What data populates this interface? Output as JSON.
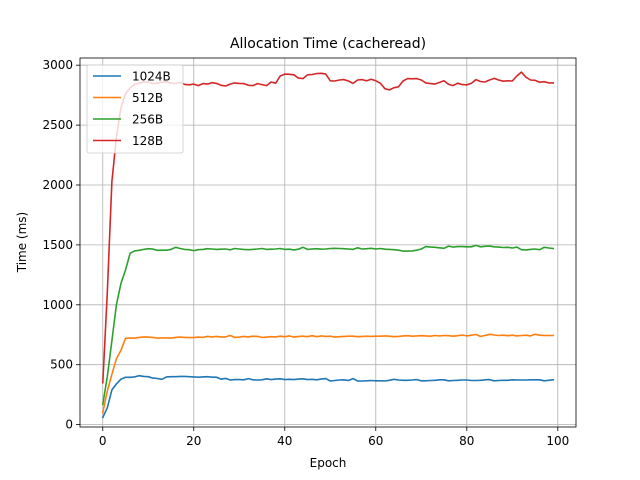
{
  "chart_data": {
    "type": "line",
    "title": "Allocation Time (cacheread)",
    "xlabel": "Epoch",
    "ylabel": "Time (ms)",
    "xlim": [
      -5,
      104
    ],
    "ylim": [
      -20,
      3060
    ],
    "xticks": [
      0,
      20,
      40,
      60,
      80,
      100
    ],
    "yticks": [
      0,
      500,
      1000,
      1500,
      2000,
      2500,
      3000
    ],
    "grid": true,
    "legend_position": "top-left",
    "series": [
      {
        "name": "1024B",
        "color": "#1f77b4",
        "x": [
          0,
          1,
          2,
          3,
          4,
          5,
          6,
          7,
          8,
          9,
          10,
          11,
          12,
          13,
          14,
          15,
          16,
          17,
          18,
          19,
          20,
          21,
          22,
          23,
          24,
          25,
          26,
          27,
          28,
          29,
          30,
          31,
          32,
          33,
          34,
          35,
          36,
          37,
          38,
          39,
          40,
          41,
          42,
          43,
          44,
          45,
          46,
          47,
          48,
          49,
          50,
          51,
          52,
          53,
          54,
          55,
          56,
          57,
          58,
          59,
          60,
          61,
          62,
          63,
          64,
          65,
          66,
          67,
          68,
          69,
          70,
          71,
          72,
          73,
          74,
          75,
          76,
          77,
          78,
          79,
          80,
          81,
          82,
          83,
          84,
          85,
          86,
          87,
          88,
          89,
          90,
          91,
          92,
          93,
          94,
          95,
          96,
          97,
          98,
          99
        ],
        "y": [
          60,
          140,
          290,
          340,
          380,
          395,
          395,
          398,
          408,
          402,
          400,
          388,
          385,
          378,
          398,
          400,
          400,
          402,
          402,
          400,
          398,
          396,
          398,
          400,
          396,
          396,
          380,
          386,
          372,
          376,
          376,
          374,
          384,
          374,
          372,
          374,
          382,
          376,
          380,
          382,
          376,
          378,
          376,
          380,
          382,
          376,
          378,
          374,
          380,
          384,
          364,
          368,
          372,
          374,
          368,
          384,
          364,
          364,
          366,
          368,
          366,
          366,
          364,
          370,
          378,
          372,
          370,
          370,
          372,
          376,
          366,
          366,
          368,
          370,
          374,
          374,
          366,
          368,
          370,
          372,
          372,
          368,
          368,
          370,
          374,
          376,
          366,
          368,
          370,
          370,
          374,
          372,
          372,
          372,
          374,
          374,
          374,
          366,
          370,
          374
        ]
      },
      {
        "name": "512B",
        "color": "#ff7f0e",
        "x": [
          0,
          1,
          2,
          3,
          4,
          5,
          6,
          7,
          8,
          9,
          10,
          11,
          12,
          13,
          14,
          15,
          16,
          17,
          18,
          19,
          20,
          21,
          22,
          23,
          24,
          25,
          26,
          27,
          28,
          29,
          30,
          31,
          32,
          33,
          34,
          35,
          36,
          37,
          38,
          39,
          40,
          41,
          42,
          43,
          44,
          45,
          46,
          47,
          48,
          49,
          50,
          51,
          52,
          53,
          54,
          55,
          56,
          57,
          58,
          59,
          60,
          61,
          62,
          63,
          64,
          65,
          66,
          67,
          68,
          69,
          70,
          71,
          72,
          73,
          74,
          75,
          76,
          77,
          78,
          79,
          80,
          81,
          82,
          83,
          84,
          85,
          86,
          87,
          88,
          89,
          90,
          91,
          92,
          93,
          94,
          95,
          96,
          97,
          98,
          99
        ],
        "y": [
          100,
          280,
          420,
          550,
          620,
          720,
          722,
          722,
          728,
          732,
          730,
          728,
          722,
          724,
          724,
          722,
          728,
          730,
          728,
          726,
          726,
          730,
          728,
          736,
          732,
          736,
          730,
          732,
          744,
          728,
          730,
          736,
          732,
          738,
          736,
          728,
          730,
          734,
          732,
          738,
          734,
          740,
          730,
          736,
          738,
          734,
          742,
          734,
          740,
          736,
          738,
          730,
          734,
          736,
          738,
          738,
          734,
          736,
          738,
          736,
          738,
          738,
          740,
          738,
          734,
          736,
          740,
          742,
          738,
          740,
          742,
          740,
          738,
          744,
          740,
          744,
          742,
          738,
          742,
          748,
          740,
          746,
          752,
          736,
          744,
          754,
          748,
          744,
          746,
          742,
          746,
          740,
          744,
          746,
          740,
          754,
          746,
          744,
          744,
          744
        ]
      },
      {
        "name": "256B",
        "color": "#2ca02c",
        "x": [
          0,
          1,
          2,
          3,
          4,
          5,
          6,
          7,
          8,
          9,
          10,
          11,
          12,
          13,
          14,
          15,
          16,
          17,
          18,
          19,
          20,
          21,
          22,
          23,
          24,
          25,
          26,
          27,
          28,
          29,
          30,
          31,
          32,
          33,
          34,
          35,
          36,
          37,
          38,
          39,
          40,
          41,
          42,
          43,
          44,
          45,
          46,
          47,
          48,
          49,
          50,
          51,
          52,
          53,
          54,
          55,
          56,
          57,
          58,
          59,
          60,
          61,
          62,
          63,
          64,
          65,
          66,
          67,
          68,
          69,
          70,
          71,
          72,
          73,
          74,
          75,
          76,
          77,
          78,
          79,
          80,
          81,
          82,
          83,
          84,
          85,
          86,
          87,
          88,
          89,
          90,
          91,
          92,
          93,
          94,
          95,
          96,
          97,
          98,
          99
        ],
        "y": [
          170,
          400,
          700,
          1000,
          1180,
          1290,
          1430,
          1450,
          1455,
          1462,
          1468,
          1465,
          1455,
          1456,
          1456,
          1462,
          1480,
          1470,
          1462,
          1460,
          1452,
          1460,
          1462,
          1468,
          1466,
          1462,
          1464,
          1466,
          1458,
          1470,
          1466,
          1462,
          1460,
          1462,
          1466,
          1470,
          1462,
          1464,
          1466,
          1470,
          1462,
          1464,
          1458,
          1464,
          1480,
          1462,
          1466,
          1468,
          1464,
          1466,
          1470,
          1472,
          1470,
          1468,
          1466,
          1462,
          1476,
          1466,
          1468,
          1472,
          1466,
          1470,
          1464,
          1462,
          1460,
          1456,
          1448,
          1448,
          1450,
          1456,
          1466,
          1486,
          1482,
          1480,
          1476,
          1472,
          1490,
          1482,
          1486,
          1486,
          1484,
          1484,
          1496,
          1484,
          1488,
          1490,
          1484,
          1482,
          1478,
          1480,
          1474,
          1482,
          1460,
          1458,
          1462,
          1466,
          1460,
          1480,
          1474,
          1470
        ]
      },
      {
        "name": "128B",
        "color": "#d62728",
        "x": [
          0,
          1,
          2,
          3,
          4,
          5,
          6,
          7,
          8,
          9,
          10,
          11,
          12,
          13,
          14,
          15,
          16,
          17,
          18,
          19,
          20,
          21,
          22,
          23,
          24,
          25,
          26,
          27,
          28,
          29,
          30,
          31,
          32,
          33,
          34,
          35,
          36,
          37,
          38,
          39,
          40,
          41,
          42,
          43,
          44,
          45,
          46,
          47,
          48,
          49,
          50,
          51,
          52,
          53,
          54,
          55,
          56,
          57,
          58,
          59,
          60,
          61,
          62,
          63,
          64,
          65,
          66,
          67,
          68,
          69,
          70,
          71,
          72,
          73,
          74,
          75,
          76,
          77,
          78,
          79,
          80,
          81,
          82,
          83,
          84,
          85,
          86,
          87,
          88,
          89,
          90,
          91,
          92,
          93,
          94,
          95,
          96,
          97,
          98,
          99
        ],
        "y": [
          350,
          1100,
          2030,
          2400,
          2650,
          2760,
          2810,
          2840,
          2850,
          2860,
          2860,
          2846,
          2850,
          2858,
          2862,
          2850,
          2848,
          2856,
          2840,
          2836,
          2842,
          2830,
          2846,
          2842,
          2854,
          2848,
          2832,
          2826,
          2842,
          2852,
          2848,
          2846,
          2832,
          2830,
          2846,
          2838,
          2830,
          2860,
          2850,
          2910,
          2926,
          2924,
          2920,
          2892,
          2888,
          2920,
          2922,
          2930,
          2932,
          2926,
          2870,
          2868,
          2876,
          2880,
          2868,
          2848,
          2876,
          2880,
          2870,
          2882,
          2870,
          2850,
          2804,
          2794,
          2812,
          2820,
          2868,
          2888,
          2886,
          2888,
          2876,
          2852,
          2846,
          2842,
          2856,
          2870,
          2840,
          2830,
          2850,
          2838,
          2836,
          2848,
          2880,
          2864,
          2860,
          2876,
          2890,
          2876,
          2866,
          2870,
          2868,
          2910,
          2942,
          2900,
          2876,
          2874,
          2858,
          2862,
          2852,
          2852
        ]
      }
    ]
  }
}
